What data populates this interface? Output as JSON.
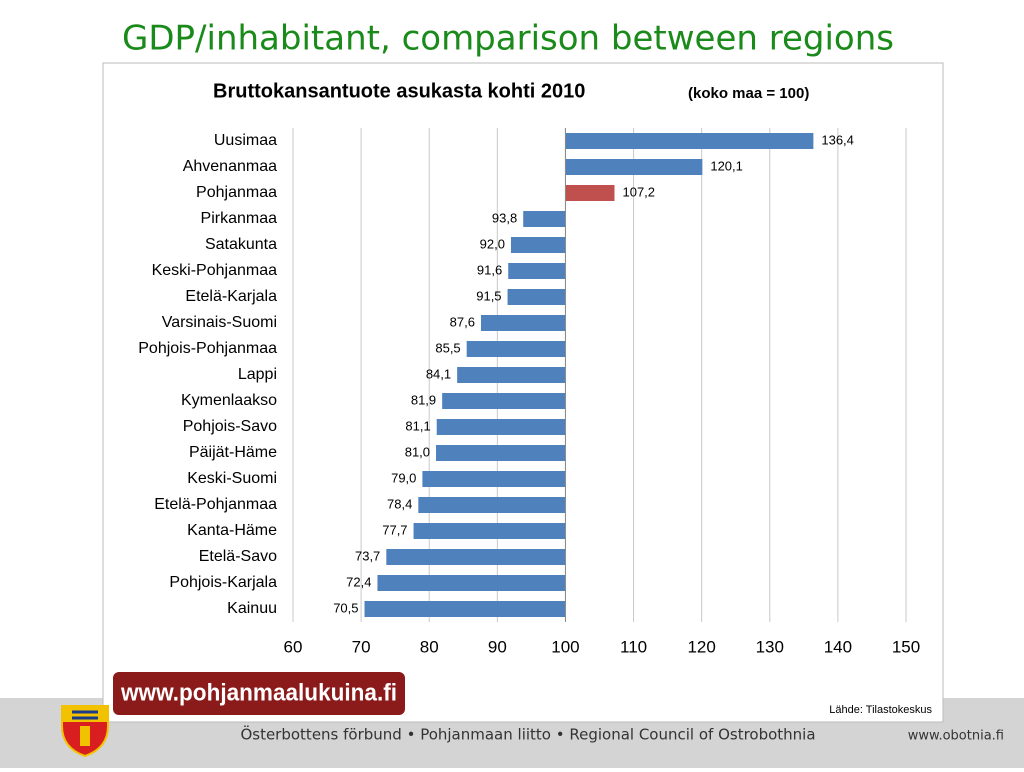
{
  "slide_title": "GDP/inhabitant, comparison between regions",
  "chart_data": {
    "type": "bar",
    "orientation": "horizontal",
    "title": "Bruttokansantuote asukasta kohti 2010",
    "subtitle": "(koko maa = 100)",
    "categories": [
      "Uusimaa",
      "Ahvenanmaa",
      "Pohjanmaa",
      "Pirkanmaa",
      "Satakunta",
      "Keski-Pohjanmaa",
      "Etelä-Karjala",
      "Varsinais-Suomi",
      "Pohjois-Pohjanmaa",
      "Lappi",
      "Kymenlaakso",
      "Pohjois-Savo",
      "Päijät-Häme",
      "Keski-Suomi",
      "Etelä-Pohjanmaa",
      "Kanta-Häme",
      "Etelä-Savo",
      "Pohjois-Karjala",
      "Kainuu"
    ],
    "values": [
      136.4,
      120.1,
      107.2,
      93.8,
      92.0,
      91.6,
      91.5,
      87.6,
      85.5,
      84.1,
      81.9,
      81.1,
      81.0,
      79.0,
      78.4,
      77.7,
      73.7,
      72.4,
      70.5
    ],
    "value_labels": [
      "136,4",
      "120,1",
      "107,2",
      "93,8",
      "92,0",
      "91,6",
      "91,5",
      "87,6",
      "85,5",
      "84,1",
      "81,9",
      "81,1",
      "81,0",
      "79,0",
      "78,4",
      "77,7",
      "73,7",
      "72,4",
      "70,5"
    ],
    "colors": [
      "#4f81bd",
      "#4f81bd",
      "#c0504d",
      "#4f81bd",
      "#4f81bd",
      "#4f81bd",
      "#4f81bd",
      "#4f81bd",
      "#4f81bd",
      "#4f81bd",
      "#4f81bd",
      "#4f81bd",
      "#4f81bd",
      "#4f81bd",
      "#4f81bd",
      "#4f81bd",
      "#4f81bd",
      "#4f81bd",
      "#4f81bd"
    ],
    "baseline": 100,
    "xlim": [
      60,
      150
    ],
    "xticks": [
      60,
      70,
      80,
      90,
      100,
      110,
      120,
      130,
      140,
      150
    ],
    "grid": true
  },
  "banner": "www.pohjanmaalukuina.fi",
  "source": "Lähde: Tilastokeskus",
  "footer": {
    "text": "Österbottens förbund • Pohjanmaan liitto • Regional Council of Ostrobothnia",
    "url": "www.obotnia.fi"
  }
}
